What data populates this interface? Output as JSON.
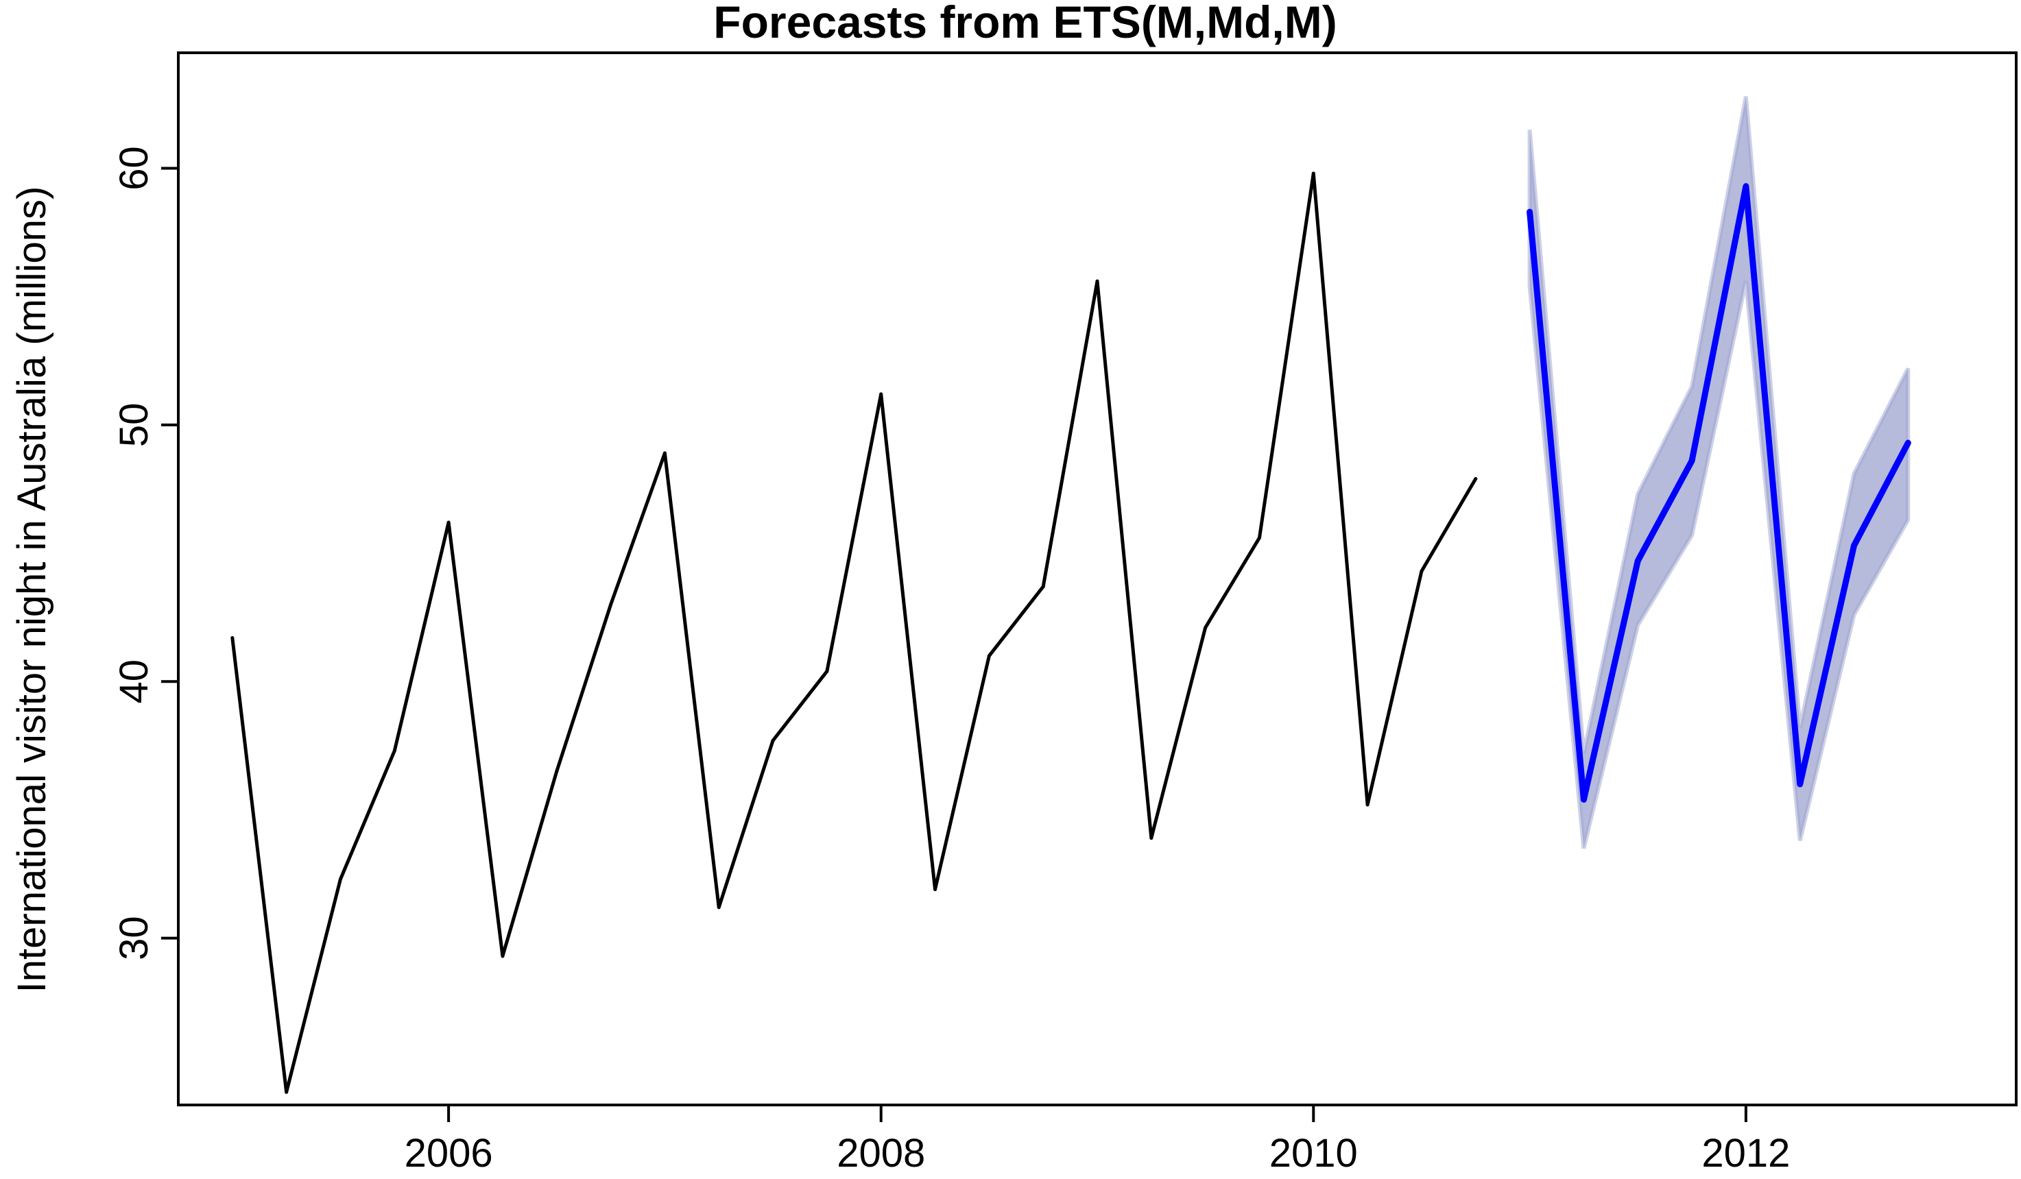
{
  "chart_data": {
    "type": "line",
    "title": "Forecasts from ETS(M,Md,M)",
    "xlabel": "",
    "ylabel": "International visitor night in Australia (millions)",
    "xlim": [
      2004.75,
      2013.25
    ],
    "ylim": [
      23.5,
      64.5
    ],
    "x_ticks": [
      2006,
      2008,
      2010,
      2012
    ],
    "y_ticks": [
      30,
      40,
      50,
      60
    ],
    "grid": false,
    "series": [
      {
        "role": "observed",
        "color": "#000000",
        "x": [
          2005.0,
          2005.25,
          2005.5,
          2005.75,
          2006.0,
          2006.25,
          2006.5,
          2006.75,
          2007.0,
          2007.25,
          2007.5,
          2007.75,
          2008.0,
          2008.25,
          2008.5,
          2008.75,
          2009.0,
          2009.25,
          2009.5,
          2009.75,
          2010.0,
          2010.25,
          2010.5,
          2010.75
        ],
        "values": [
          41.7,
          24.0,
          32.3,
          37.3,
          46.2,
          29.3,
          36.5,
          43.0,
          48.9,
          31.2,
          37.7,
          40.4,
          51.2,
          31.9,
          41.0,
          43.7,
          55.6,
          33.9,
          42.1,
          45.6,
          59.8,
          35.2,
          44.3,
          47.9
        ]
      },
      {
        "role": "forecast",
        "color": "#0000ff",
        "x": [
          2011.0,
          2011.25,
          2011.5,
          2011.75,
          2012.0,
          2012.25,
          2012.5,
          2012.75
        ],
        "values": [
          58.3,
          35.4,
          44.7,
          48.6,
          59.3,
          36.0,
          45.3,
          49.3
        ],
        "lower": [
          55.4,
          33.5,
          42.2,
          45.7,
          55.6,
          33.8,
          42.6,
          46.3
        ],
        "upper": [
          61.5,
          37.2,
          47.3,
          51.5,
          62.8,
          38.2,
          48.1,
          52.2
        ],
        "band_color": "#9ea3cf"
      }
    ]
  }
}
